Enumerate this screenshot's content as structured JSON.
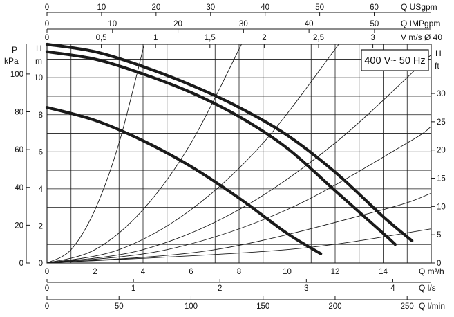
{
  "chart_data": {
    "type": "line",
    "box_label": "400 V~ 50 Hz",
    "x_label_m3h": "Q m³/h",
    "y_label_left": "H",
    "y_unit_left": "m",
    "y_label_pressure": "P",
    "y_unit_pressure": "kPa",
    "y_label_right": "H",
    "y_unit_right": "ft",
    "axes": {
      "flow_m3h": {
        "label": "Q m³/h",
        "range": [
          0,
          16
        ],
        "ticks": [
          "0",
          "2",
          "4",
          "6",
          "8",
          "10",
          "12",
          "14"
        ]
      },
      "flow_ls": {
        "label": "Q l/s",
        "range": [
          0,
          4.444
        ],
        "ticks": [
          "0",
          "1",
          "2",
          "3",
          "4"
        ]
      },
      "flow_lmin": {
        "label": "Q l/min",
        "range": [
          0,
          266.7
        ],
        "ticks": [
          "0",
          "50",
          "100",
          "150",
          "200",
          "250"
        ]
      },
      "flow_usgpm": {
        "label": "Q USgpm",
        "range": [
          0,
          70.45
        ],
        "ticks": [
          "0",
          "10",
          "20",
          "30",
          "40",
          "50",
          "60"
        ]
      },
      "flow_impgpm": {
        "label": "Q IMPgpm",
        "range": [
          0,
          58.66
        ],
        "ticks": [
          "0",
          "10",
          "20",
          "30",
          "40",
          "50"
        ]
      },
      "velocity": {
        "label": "V m/s Ø 40",
        "range": [
          0,
          3.537
        ],
        "ticks": [
          "0",
          "0,5",
          "1",
          "1,5",
          "2",
          "2,5",
          "3"
        ]
      },
      "head_m": {
        "label": "H m",
        "range": [
          0,
          11.8
        ],
        "ticks": [
          "0",
          "2",
          "4",
          "6",
          "8",
          "10"
        ]
      },
      "pressure_kpa": {
        "label": "P kPa",
        "range": [
          0,
          115.7
        ],
        "ticks": [
          "0",
          "20",
          "40",
          "60",
          "80",
          "100"
        ]
      },
      "head_ft": {
        "label": "H ft",
        "range": [
          0,
          38.7
        ],
        "ticks": [
          "0",
          "5",
          "10",
          "15",
          "20",
          "25",
          "30"
        ]
      }
    },
    "grid": true,
    "pump_curves": [
      {
        "x": [
          0,
          2,
          4,
          6,
          8,
          10,
          11.4
        ],
        "y": [
          8.4,
          7.7,
          6.6,
          5.2,
          3.5,
          1.6,
          0.5
        ]
      },
      {
        "x": [
          0,
          2,
          4,
          6,
          8,
          10,
          12,
          14,
          14.5
        ],
        "y": [
          11.4,
          11.0,
          10.2,
          9.2,
          7.9,
          6.2,
          3.9,
          1.6,
          1.0
        ]
      },
      {
        "x": [
          0,
          2,
          4,
          6,
          8,
          10,
          12,
          14,
          15.2
        ],
        "y": [
          11.8,
          11.4,
          10.6,
          9.6,
          8.4,
          6.9,
          4.9,
          2.5,
          1.2
        ]
      }
    ],
    "system_curves": [
      {
        "x": [
          0,
          1,
          2,
          3,
          4.05
        ],
        "y": [
          0,
          0.72,
          2.88,
          6.48,
          11.8
        ]
      },
      {
        "x": [
          0,
          2,
          4,
          6,
          8.1
        ],
        "y": [
          0,
          0.72,
          2.88,
          6.48,
          11.8
        ]
      },
      {
        "x": [
          0,
          3,
          6,
          9,
          12.15
        ],
        "y": [
          0,
          0.72,
          2.88,
          6.48,
          11.8
        ]
      },
      {
        "x": [
          0,
          4,
          8,
          12,
          16
        ],
        "y": [
          0,
          0.72,
          2.88,
          6.48,
          11.24
        ]
      },
      {
        "x": [
          0,
          5,
          10,
          15,
          16
        ],
        "y": [
          0,
          0.72,
          2.88,
          6.48,
          7.37
        ]
      },
      {
        "x": [
          0,
          7,
          14,
          16
        ],
        "y": [
          0,
          0.72,
          2.88,
          3.76
        ]
      },
      {
        "x": [
          0,
          10,
          16
        ],
        "y": [
          0,
          0.72,
          1.84
        ]
      }
    ]
  }
}
